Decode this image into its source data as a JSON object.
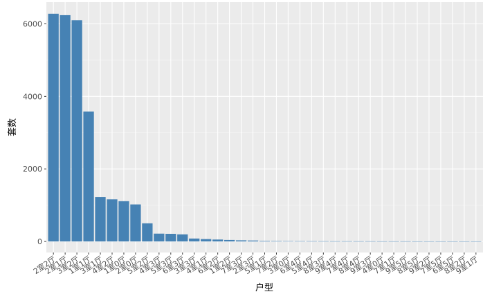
{
  "chart_data": {
    "type": "bar",
    "xlabel": "户型",
    "ylabel": "套数",
    "ylim": [
      0,
      6400
    ],
    "yticks": [
      0,
      2000,
      4000,
      6000
    ],
    "grid": true,
    "bar_color": "#4682B4",
    "panel_color": "#EBEBEB",
    "categories": [
      "2室2厅",
      "2室1厅",
      "3室2厅",
      "1室1厅",
      "3室1厅",
      "4室2厅",
      "1室0厅",
      "2室0厅",
      "5室2厅",
      "4室3厅",
      "5室3厅",
      "6室3厅",
      "3室3厅",
      "4室1厅",
      "6室2厅",
      "1室2厅",
      "7室3厅",
      "2室3厅",
      "5室1厅",
      "7室2厅",
      "3室0厅",
      "6室4厅",
      "5室4厅",
      "8室3厅",
      "9室4厅",
      "7室4厅",
      "8室4厅",
      "9室3厅",
      "4室0厅",
      "7室1厅",
      "9室5厅",
      "8室5厅",
      "9室2厅",
      "7室5厅",
      "6室5厅",
      "8室2厅",
      "9室1厅"
    ],
    "values": [
      6280,
      6240,
      6100,
      3580,
      1220,
      1160,
      1110,
      1020,
      500,
      215,
      210,
      195,
      80,
      65,
      52,
      40,
      30,
      25,
      15,
      12,
      10,
      8,
      7,
      6,
      5,
      5,
      4,
      4,
      3,
      3,
      3,
      2,
      2,
      2,
      2,
      2,
      2
    ]
  }
}
